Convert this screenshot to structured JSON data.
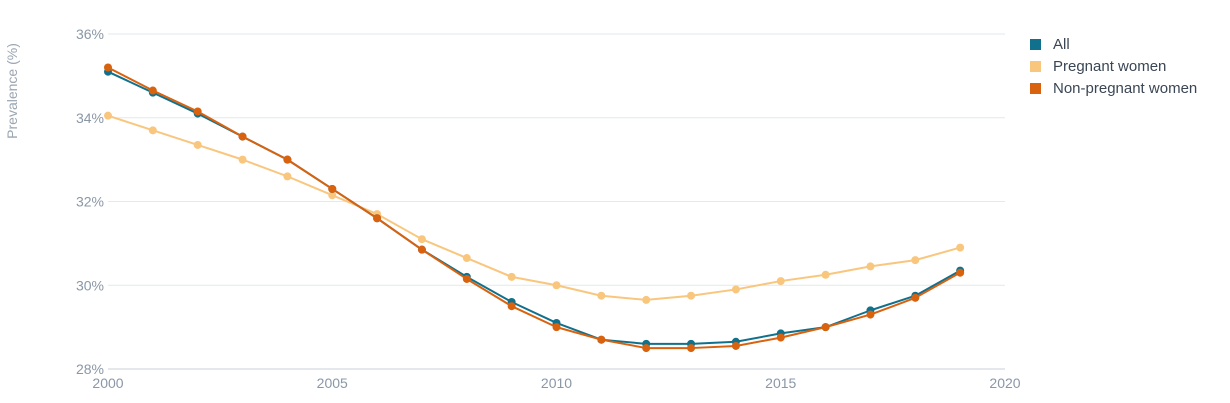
{
  "chart_data": {
    "type": "line",
    "title": "",
    "xlabel": "",
    "ylabel": "Prevalence (%)",
    "x_ticks": [
      "2000",
      "2005",
      "2010",
      "2015",
      "2020"
    ],
    "y_ticks": [
      "28%",
      "30%",
      "32%",
      "34%",
      "36%"
    ],
    "xlim": [
      2000,
      2020
    ],
    "ylim": [
      28,
      36
    ],
    "grid": true,
    "legend_position": "top-right",
    "x": [
      2000,
      2001,
      2002,
      2003,
      2004,
      2005,
      2006,
      2007,
      2008,
      2009,
      2010,
      2011,
      2012,
      2013,
      2014,
      2015,
      2016,
      2017,
      2018,
      2019
    ],
    "series": [
      {
        "name": "All",
        "color": "#11718c",
        "values": [
          35.1,
          34.6,
          34.1,
          33.55,
          33.0,
          32.3,
          31.6,
          30.85,
          30.2,
          29.6,
          29.1,
          28.7,
          28.6,
          28.6,
          28.65,
          28.85,
          29.0,
          29.4,
          29.75,
          30.35
        ]
      },
      {
        "name": "Pregnant women",
        "color": "#f9c67e",
        "values": [
          34.05,
          33.7,
          33.35,
          33.0,
          32.6,
          32.15,
          31.7,
          31.1,
          30.65,
          30.2,
          30.0,
          29.75,
          29.65,
          29.75,
          29.9,
          30.1,
          30.25,
          30.45,
          30.6,
          30.9
        ]
      },
      {
        "name": "Non-pregnant women",
        "color": "#d9620f",
        "values": [
          35.2,
          34.65,
          34.15,
          33.55,
          33.0,
          32.3,
          31.6,
          30.85,
          30.15,
          29.5,
          29.0,
          28.7,
          28.5,
          28.5,
          28.55,
          28.75,
          29.0,
          29.3,
          29.7,
          30.3
        ]
      }
    ]
  }
}
